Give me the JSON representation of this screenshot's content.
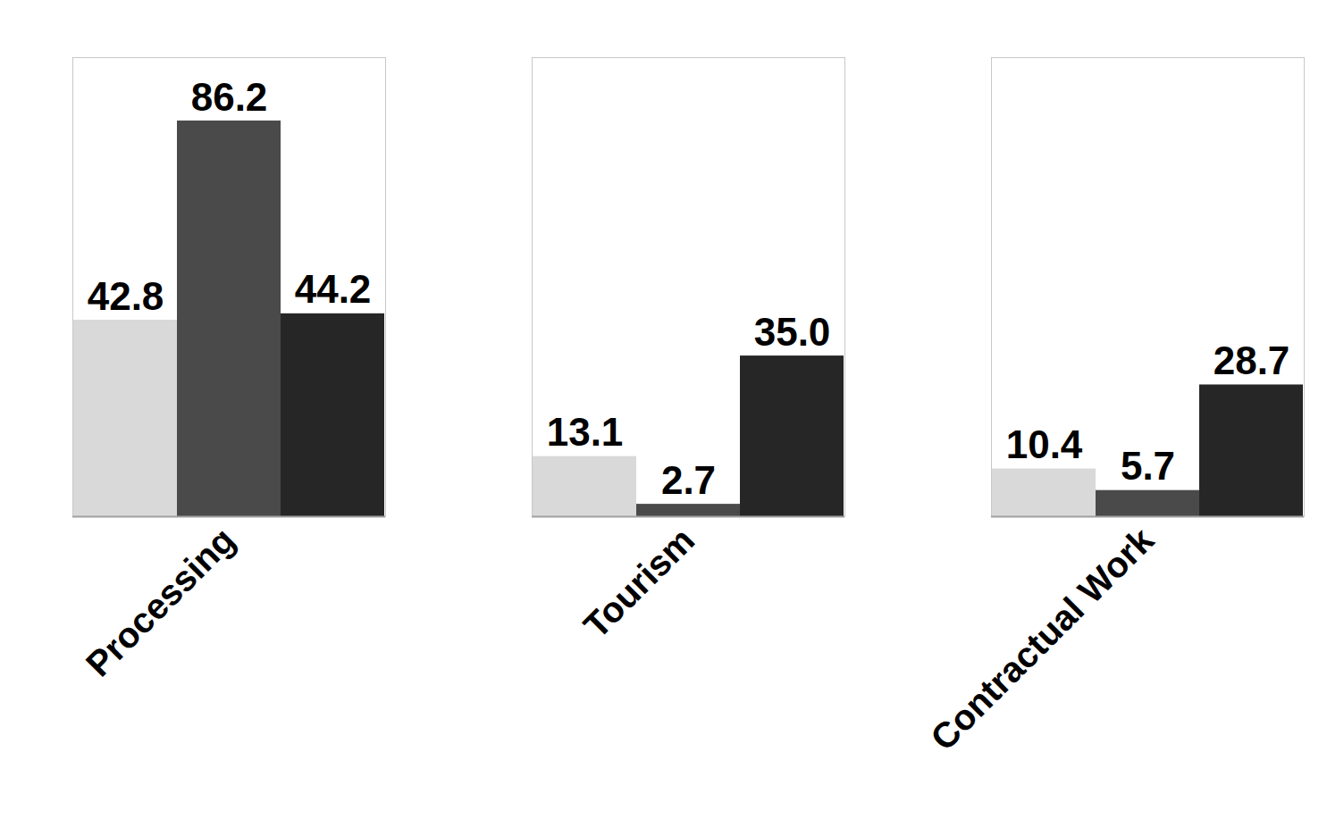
{
  "chart_data": {
    "type": "bar",
    "categories": [
      "Processing",
      "Tourism",
      "Contractual Work"
    ],
    "series": [
      {
        "color": "#d9d9d9",
        "values": [
          42.8,
          13.1,
          10.4
        ],
        "value_labels": [
          "42.8",
          "13.1",
          "10.4"
        ]
      },
      {
        "color": "#4a4a4a",
        "values": [
          86.2,
          2.7,
          5.7
        ],
        "value_labels": [
          "86.2",
          "2.7",
          "5.7"
        ]
      },
      {
        "color": "#262626",
        "values": [
          44.2,
          35.0,
          28.7
        ],
        "value_labels": [
          "44.2",
          "35.0",
          "28.7"
        ]
      }
    ],
    "ylim": [
      0,
      100
    ],
    "yticks": [],
    "grid": false,
    "data_labels": true,
    "tick_labels": "x"
  }
}
